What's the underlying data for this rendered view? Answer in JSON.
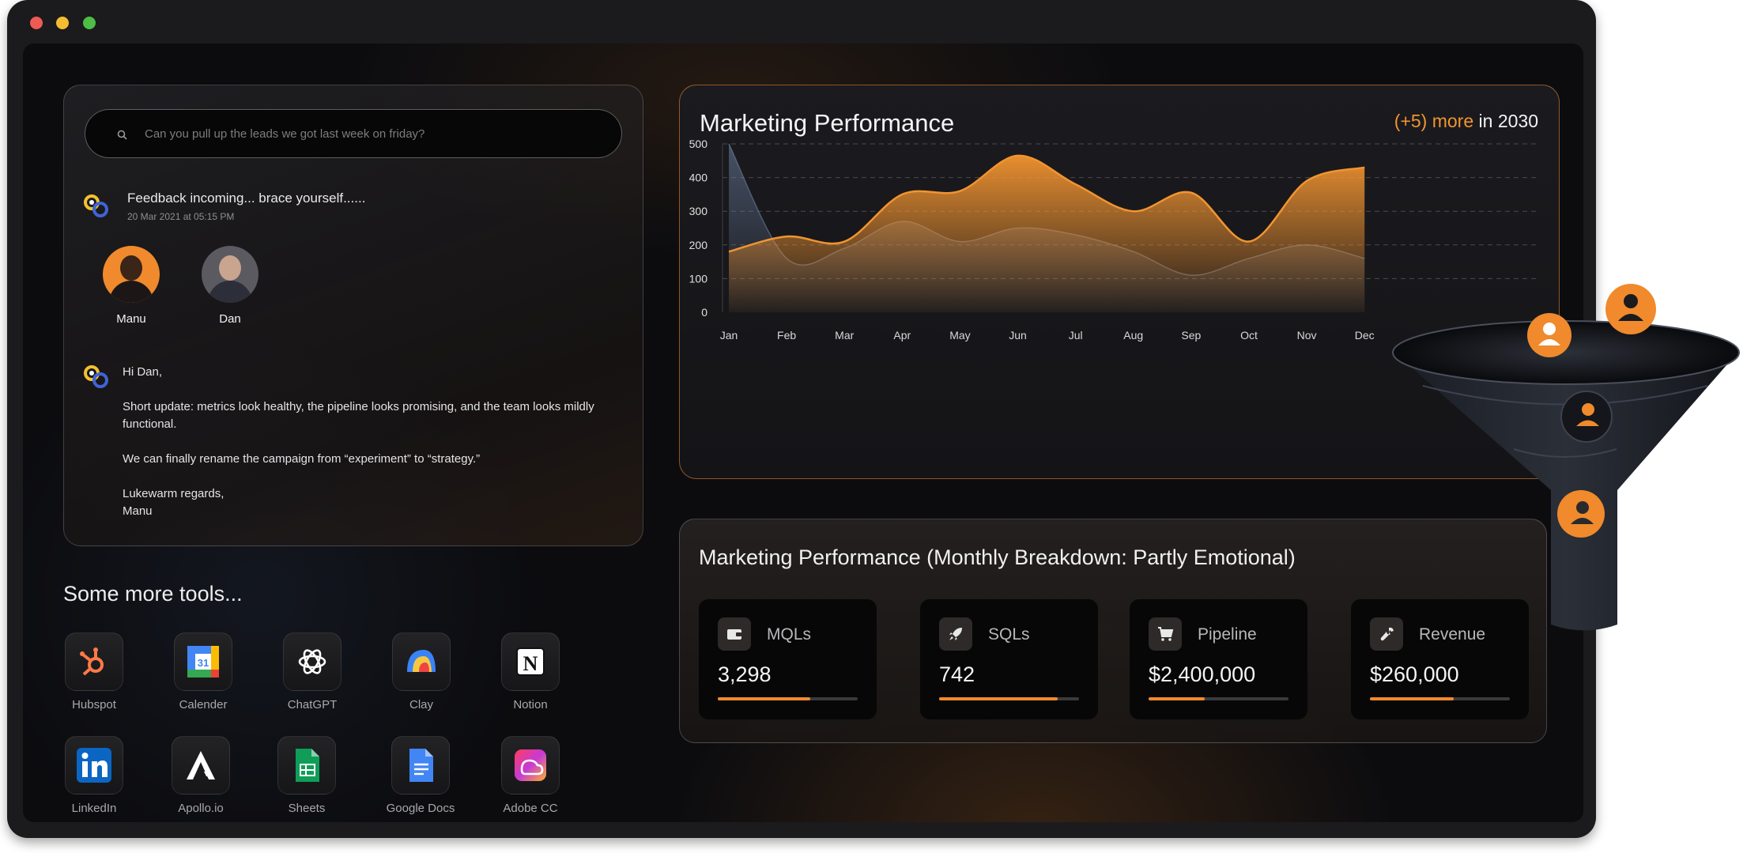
{
  "search": {
    "placeholder": "Can you pull up the leads we got last week on friday?"
  },
  "message": {
    "title": "Feedback incoming... brace yourself......",
    "timestamp": "20 Mar 2021 at 05:15 PM"
  },
  "people": [
    {
      "name": "Manu"
    },
    {
      "name": "Dan"
    }
  ],
  "letter": {
    "greeting": "Hi Dan,",
    "body1": "Short update: metrics look healthy, the pipeline looks promising, and the team looks mildly functional.",
    "body2": "We can finally rename the campaign from “experiment” to “strategy.”",
    "signoff": "Lukewarm regards,\nManu"
  },
  "tools": {
    "title": "Some more tools...",
    "items": [
      {
        "label": "Hubspot",
        "icon": "hubspot-icon"
      },
      {
        "label": "Calender",
        "icon": "calendar-icon"
      },
      {
        "label": "ChatGPT",
        "icon": "chatgpt-icon"
      },
      {
        "label": "Clay",
        "icon": "clay-icon"
      },
      {
        "label": "Notion",
        "icon": "notion-icon"
      },
      {
        "label": "LinkedIn",
        "icon": "linkedin-icon"
      },
      {
        "label": "Apollo.io",
        "icon": "apollo-icon"
      },
      {
        "label": "Sheets",
        "icon": "sheets-icon"
      },
      {
        "label": "Google Docs",
        "icon": "google-docs-icon"
      },
      {
        "label": "Adobe CC",
        "icon": "adobe-cc-icon"
      }
    ]
  },
  "chart": {
    "title": "Marketing Performance",
    "badge_accent": "(+5) more",
    "badge_rest": "in 2030"
  },
  "chart_data": {
    "type": "area",
    "title": "Marketing Performance",
    "categories": [
      "Jan",
      "Feb",
      "Mar",
      "Apr",
      "May",
      "Jun",
      "Jul",
      "Aug",
      "Sep",
      "Oct",
      "Nov",
      "Dec"
    ],
    "ylim": [
      0,
      500
    ],
    "yticks": [
      0,
      100,
      200,
      300,
      400,
      500
    ],
    "grid": true,
    "series": [
      {
        "values": [
          180,
          225,
          210,
          350,
          360,
          465,
          380,
          300,
          355,
          210,
          390,
          430
        ],
        "color": "#f29430"
      },
      {
        "values": [
          500,
          160,
          190,
          270,
          210,
          250,
          230,
          180,
          110,
          160,
          200,
          160
        ],
        "color": "#6b7fa0"
      }
    ]
  },
  "breakdown": {
    "title": "Marketing Performance (Monthly Breakdown: Partly Emotional)",
    "metrics": [
      {
        "label": "MQLs",
        "value": "3,298",
        "progress": 0.66,
        "icon": "wallet-icon"
      },
      {
        "label": "SQLs",
        "value": "742",
        "progress": 0.85,
        "icon": "rocket-icon"
      },
      {
        "label": "Pipeline",
        "value": "$2,400,000",
        "progress": 0.4,
        "icon": "cart-icon"
      },
      {
        "label": "Revenue",
        "value": "$260,000",
        "progress": 0.6,
        "icon": "wrench-icon"
      }
    ]
  },
  "colors": {
    "accent": "#f08a2c",
    "background": "#0c0c0f",
    "panel_border": "#f08a2c"
  }
}
